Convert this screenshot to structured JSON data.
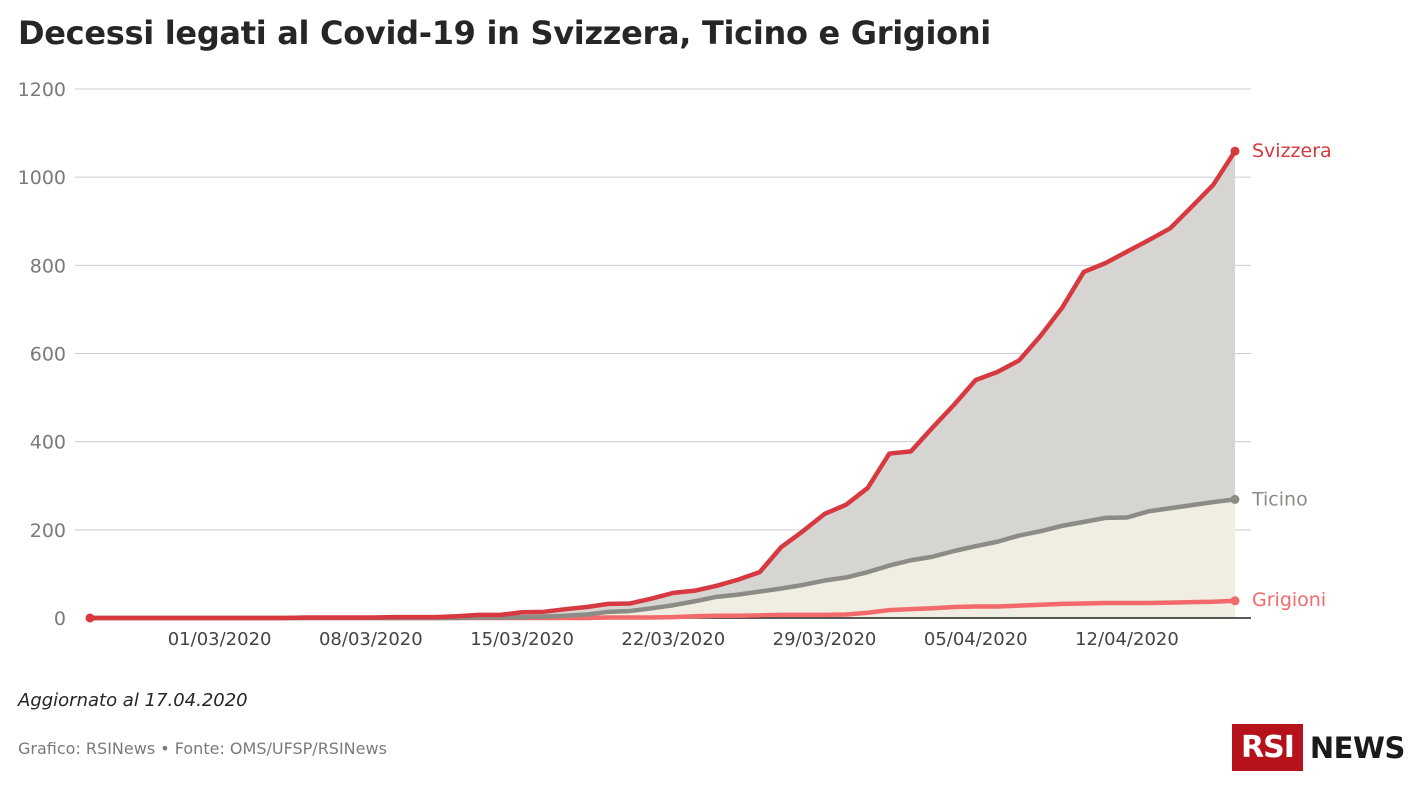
{
  "title": "Decessi legati al Covid-19 in Svizzera, Ticino e Grigioni",
  "updated": "Aggiornato al 17.04.2020",
  "credits": "Grafico: RSINews • Fonte: OMS/UFSP/RSINews",
  "logo": {
    "box": "RSI",
    "text": "NEWS"
  },
  "colors": {
    "svizzera": "#d6393f",
    "ticino": "#8c8c86",
    "grigioni": "#f26a6a",
    "area_svizzera": "#d6d5d1",
    "area_ticino": "#f0eee3",
    "grid": "#cccccc"
  },
  "chart_data": {
    "type": "area",
    "title": "Decessi legati al Covid-19 in Svizzera, Ticino e Grigioni",
    "xlabel": "",
    "ylabel": "",
    "ylim": [
      0,
      1200
    ],
    "yticks": [
      0,
      200,
      400,
      600,
      800,
      1000,
      1200
    ],
    "ytick_labels": [
      "0",
      "200",
      "400",
      "600",
      "800",
      "1000",
      "1200"
    ],
    "xlim": [
      "2020-02-24",
      "2020-04-17"
    ],
    "xtick_labels": [
      "01/03/2020",
      "08/03/2020",
      "15/03/2020",
      "22/03/2020",
      "29/03/2020",
      "05/04/2020",
      "12/04/2020"
    ],
    "x": [
      "2020-02-24",
      "2020-02-25",
      "2020-02-26",
      "2020-02-27",
      "2020-02-28",
      "2020-02-29",
      "2020-03-01",
      "2020-03-02",
      "2020-03-03",
      "2020-03-04",
      "2020-03-05",
      "2020-03-06",
      "2020-03-07",
      "2020-03-08",
      "2020-03-09",
      "2020-03-10",
      "2020-03-11",
      "2020-03-12",
      "2020-03-13",
      "2020-03-14",
      "2020-03-15",
      "2020-03-16",
      "2020-03-17",
      "2020-03-18",
      "2020-03-19",
      "2020-03-20",
      "2020-03-21",
      "2020-03-22",
      "2020-03-23",
      "2020-03-24",
      "2020-03-25",
      "2020-03-26",
      "2020-03-27",
      "2020-03-28",
      "2020-03-29",
      "2020-03-30",
      "2020-03-31",
      "2020-04-01",
      "2020-04-02",
      "2020-04-03",
      "2020-04-04",
      "2020-04-05",
      "2020-04-06",
      "2020-04-07",
      "2020-04-08",
      "2020-04-09",
      "2020-04-10",
      "2020-04-11",
      "2020-04-12",
      "2020-04-13",
      "2020-04-14",
      "2020-04-15",
      "2020-04-16",
      "2020-04-17"
    ],
    "series": [
      {
        "name": "Svizzera",
        "values": [
          0,
          0,
          0,
          0,
          0,
          0,
          0,
          0,
          0,
          0,
          1,
          1,
          1,
          1,
          2,
          2,
          2,
          4,
          7,
          7,
          13,
          14,
          20,
          25,
          32,
          33,
          44,
          57,
          62,
          73,
          87,
          104,
          161,
          197,
          236,
          257,
          295,
          373,
          378,
          432,
          484,
          540,
          558,
          584,
          640,
          704,
          785,
          805,
          831,
          857,
          884,
          933,
          983,
          1059
        ]
      },
      {
        "name": "Ticino",
        "values": [
          0,
          0,
          0,
          0,
          0,
          0,
          0,
          0,
          0,
          0,
          0,
          0,
          0,
          0,
          0,
          0,
          0,
          0,
          1,
          1,
          2,
          3,
          5,
          8,
          14,
          16,
          22,
          29,
          38,
          48,
          53,
          60,
          67,
          75,
          85,
          92,
          104,
          119,
          131,
          139,
          152,
          163,
          173,
          187,
          197,
          209,
          218,
          227,
          228,
          242,
          249,
          256,
          263,
          269
        ]
      },
      {
        "name": "Grigioni",
        "values": [
          0,
          0,
          0,
          0,
          0,
          0,
          0,
          0,
          0,
          0,
          0,
          0,
          0,
          0,
          0,
          0,
          0,
          0,
          0,
          0,
          0,
          0,
          0,
          0,
          1,
          1,
          1,
          2,
          4,
          5,
          5,
          6,
          7,
          7,
          7,
          8,
          12,
          18,
          20,
          22,
          25,
          26,
          26,
          28,
          30,
          32,
          33,
          34,
          34,
          34,
          35,
          36,
          37,
          39
        ]
      }
    ],
    "series_labels": [
      "Svizzera",
      "Ticino",
      "Grigioni"
    ],
    "grid": true,
    "legend": "direct labels at line ends (right)"
  }
}
